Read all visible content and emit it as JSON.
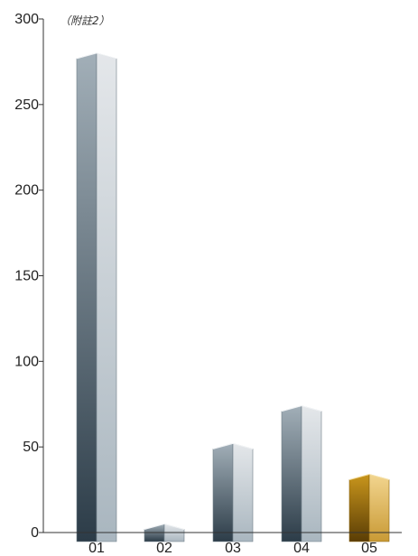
{
  "chart_data": {
    "type": "bar",
    "annotation": "（附註2）",
    "categories": [
      "01",
      "02",
      "03",
      "04",
      "05"
    ],
    "values": [
      280,
      5,
      52,
      74,
      34
    ],
    "highlight_index": 4,
    "ylim": [
      0,
      300
    ],
    "yticks": [
      0,
      50,
      100,
      150,
      200,
      250,
      300
    ],
    "grid": false,
    "colors": {
      "bar_dark": "#2c3c48",
      "bar_mid": "#7b8c97",
      "bar_light": "#e4e7ea",
      "highlight_dark": "#5a3d05",
      "highlight_mid": "#b8860f",
      "highlight_light": "#f2d58f",
      "axis": "#333333"
    }
  }
}
